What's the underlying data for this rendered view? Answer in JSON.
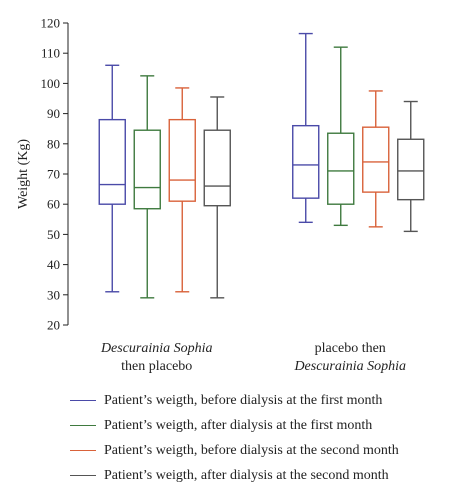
{
  "chart_data": {
    "type": "boxplot",
    "ylabel": "Weight (Kg)",
    "ylim": [
      20,
      120
    ],
    "yticks": [
      20,
      30,
      40,
      50,
      60,
      70,
      80,
      90,
      100,
      110,
      120
    ],
    "groups": [
      {
        "line1": "Descurainia Sophia",
        "line1_italic": true,
        "line2": "then placebo",
        "line2_italic": false
      },
      {
        "line1": "placebo then",
        "line1_italic": false,
        "line2": "Descurainia Sophia",
        "line2_italic": true
      }
    ],
    "series": [
      {
        "name": "Patient’s weigth, before dialysis at the first month",
        "color": "#4a4aa8",
        "boxes": [
          {
            "min": 31,
            "q1": 60,
            "median": 66.5,
            "q3": 88,
            "max": 106
          },
          {
            "min": 54,
            "q1": 62,
            "median": 73,
            "q3": 86,
            "max": 116.5
          }
        ]
      },
      {
        "name": "Patient’s weigth, after dialysis at the first month",
        "color": "#3f7a3f",
        "boxes": [
          {
            "min": 29,
            "q1": 58.5,
            "median": 65.5,
            "q3": 84.5,
            "max": 102.5
          },
          {
            "min": 53,
            "q1": 60,
            "median": 71,
            "q3": 83.5,
            "max": 112
          }
        ]
      },
      {
        "name": "Patient’s weigth, before dialysis at the second month",
        "color": "#d9623a",
        "boxes": [
          {
            "min": 31,
            "q1": 61,
            "median": 68,
            "q3": 88,
            "max": 98.5
          },
          {
            "min": 52.5,
            "q1": 64,
            "median": 74,
            "q3": 85.5,
            "max": 97.5
          }
        ]
      },
      {
        "name": "Patient’s weigth, after dialysis at the second month",
        "color": "#555555",
        "boxes": [
          {
            "min": 29,
            "q1": 59.5,
            "median": 66,
            "q3": 84.5,
            "max": 95.5
          },
          {
            "min": 51,
            "q1": 61.5,
            "median": 71,
            "q3": 81.5,
            "max": 94
          }
        ]
      }
    ]
  }
}
